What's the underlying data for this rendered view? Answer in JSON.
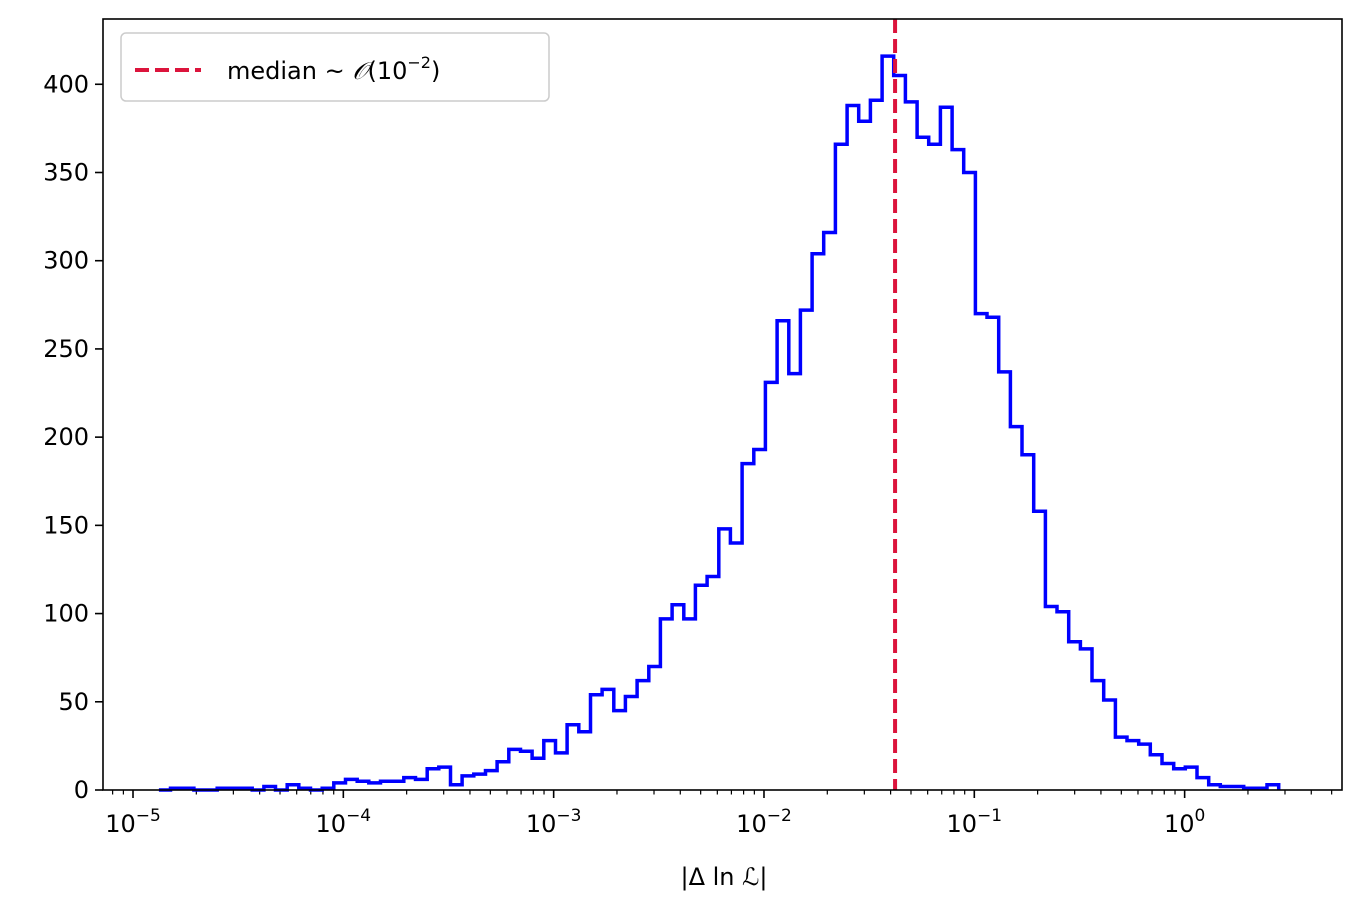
{
  "chart_data": {
    "type": "histogram",
    "x_scale": "log",
    "xlabel": "|Δ ln ℒ|",
    "ylabel": "",
    "title": "",
    "xlim": [
      7.2e-06,
      5.6
    ],
    "ylim": [
      0,
      437
    ],
    "x_ticks": [
      {
        "value": 1e-05,
        "base": "10",
        "exp": "−5"
      },
      {
        "value": 0.0001,
        "base": "10",
        "exp": "−4"
      },
      {
        "value": 0.001,
        "base": "10",
        "exp": "−3"
      },
      {
        "value": 0.01,
        "base": "10",
        "exp": "−2"
      },
      {
        "value": 0.1,
        "base": "10",
        "exp": "−1"
      },
      {
        "value": 1,
        "base": "10",
        "exp": "0"
      }
    ],
    "y_ticks": [
      0,
      50,
      100,
      150,
      200,
      250,
      300,
      350,
      400
    ],
    "y_tick_labels": [
      "0",
      "50",
      "100",
      "150",
      "200",
      "250",
      "300",
      "350",
      "400"
    ],
    "histogram": {
      "color": "#0000ff",
      "log_x_start": -4.877,
      "log_x_end": 0.447,
      "counts": [
        0,
        1,
        1,
        0,
        0,
        1,
        1,
        1,
        0,
        2,
        0,
        3,
        1,
        0,
        1,
        4,
        6,
        5,
        4,
        5,
        5,
        7,
        6,
        12,
        13,
        3,
        8,
        9,
        11,
        16,
        23,
        22,
        18,
        28,
        21,
        37,
        33,
        54,
        57,
        45,
        53,
        62,
        70,
        97,
        105,
        97,
        116,
        121,
        148,
        140,
        185,
        193,
        231,
        266,
        236,
        272,
        304,
        316,
        366,
        388,
        379,
        391,
        416,
        405,
        390,
        370,
        366,
        387,
        363,
        350,
        270,
        268,
        237,
        206,
        190,
        158,
        104,
        101,
        84,
        80,
        62,
        51,
        30,
        28,
        26,
        20,
        15,
        12,
        13,
        7,
        3,
        2,
        2,
        1,
        1,
        3
      ]
    },
    "median": {
      "value": 0.042,
      "color": "#dc143c",
      "style": "dashed"
    },
    "legend": {
      "placement": "upper-left",
      "entries": [
        {
          "label_main": "median ~ ",
          "label_script": "𝒪",
          "label_paren_open": "(10",
          "label_exp": "−2",
          "label_paren_close": ")",
          "color": "#dc143c",
          "style": "dashed"
        }
      ]
    }
  }
}
